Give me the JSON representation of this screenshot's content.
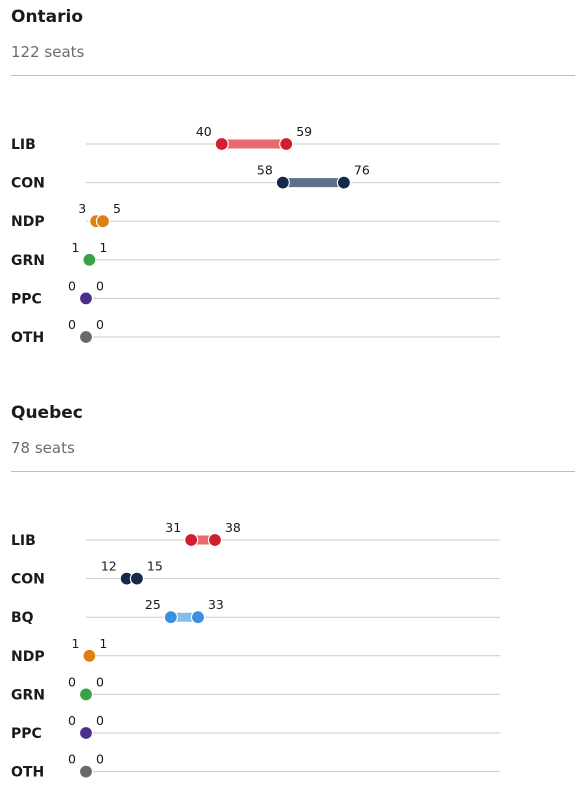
{
  "chart_data": [
    {
      "type": "range",
      "title": "Ontario",
      "subtitle": "122 seats",
      "xlim": [
        0,
        122
      ],
      "series": [
        {
          "party": "LIB",
          "low": 40,
          "high": 59,
          "color": "#d0202e",
          "bar_color": "#ea6870"
        },
        {
          "party": "CON",
          "low": 58,
          "high": 76,
          "color": "#14294b",
          "bar_color": "#5c6f89"
        },
        {
          "party": "NDP",
          "low": 3,
          "high": 5,
          "color": "#e07d13",
          "bar_color": "#f2b36b"
        },
        {
          "party": "GRN",
          "low": 1,
          "high": 1,
          "color": "#3aa148",
          "bar_color": "#7cc987"
        },
        {
          "party": "PPC",
          "low": 0,
          "high": 0,
          "color": "#4f2f8c",
          "bar_color": "#8f79bd"
        },
        {
          "party": "OTH",
          "low": 0,
          "high": 0,
          "color": "#6a6a6a",
          "bar_color": "#a6a6a6"
        }
      ]
    },
    {
      "type": "range",
      "title": "Quebec",
      "subtitle": "78 seats",
      "xlim": [
        0,
        122
      ],
      "series": [
        {
          "party": "LIB",
          "low": 31,
          "high": 38,
          "color": "#d0202e",
          "bar_color": "#ea6870"
        },
        {
          "party": "CON",
          "low": 12,
          "high": 15,
          "color": "#14294b",
          "bar_color": "#5c6f89"
        },
        {
          "party": "BQ",
          "low": 25,
          "high": 33,
          "color": "#3a8fe0",
          "bar_color": "#86bdf0"
        },
        {
          "party": "NDP",
          "low": 1,
          "high": 1,
          "color": "#e07d13",
          "bar_color": "#f2b36b"
        },
        {
          "party": "GRN",
          "low": 0,
          "high": 0,
          "color": "#3aa148",
          "bar_color": "#7cc987"
        },
        {
          "party": "PPC",
          "low": 0,
          "high": 0,
          "color": "#4f2f8c",
          "bar_color": "#8f79bd"
        },
        {
          "party": "OTH",
          "low": 0,
          "high": 0,
          "color": "#6a6a6a",
          "bar_color": "#a6a6a6"
        }
      ]
    }
  ]
}
